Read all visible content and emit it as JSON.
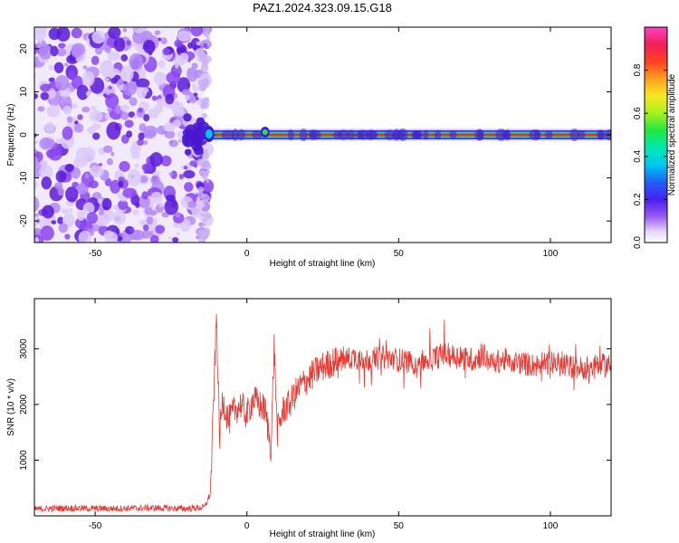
{
  "title": "PAZ1.2024.323.09.15.G18",
  "colors": {
    "snr_line": "#e83a34",
    "spectrogram_noise": "#7b2fe6",
    "spectrogram_band": "#e0303a"
  },
  "chart_data": [
    {
      "type": "heatmap",
      "name": "spectrogram",
      "xlabel": "Height of straight line (km)",
      "ylabel": "Frequency (Hz)",
      "xlim": [
        -70,
        120
      ],
      "ylim": [
        -25,
        25
      ],
      "xticks": [
        -50,
        0,
        50,
        100
      ],
      "yticks": [
        -20,
        -10,
        0,
        10,
        20
      ],
      "colorbar": {
        "label": "Normalized spectral amplitude",
        "range": [
          0,
          1
        ],
        "ticks": [
          "0.0",
          "0.2",
          "0.4",
          "0.6",
          "0.8"
        ],
        "tick_values": [
          0.0,
          0.2,
          0.4,
          0.6,
          0.8
        ]
      },
      "noise_region_x": [
        -70,
        -14
      ],
      "signal_region_x": [
        -14,
        120
      ],
      "signal_frequency": 0
    },
    {
      "type": "line",
      "name": "snr",
      "xlabel": "Height of straight line (km)",
      "ylabel": "SNR (10 * v/v)",
      "xlim": [
        -70,
        120
      ],
      "ylim": [
        0,
        3900
      ],
      "xticks": [
        -50,
        0,
        50,
        100
      ],
      "yticks": [
        1000,
        2000,
        3000
      ],
      "series": [
        {
          "x": [
            -70,
            -60,
            -50,
            -40,
            -30,
            -20,
            -14,
            -12,
            -10,
            -9,
            -8,
            -6,
            -4,
            -2,
            0,
            2,
            4,
            6,
            8,
            9,
            10,
            12,
            14,
            16,
            18,
            20,
            22,
            24,
            26,
            28,
            30,
            32,
            35,
            40,
            45,
            50,
            55,
            60,
            65,
            70,
            75,
            78,
            80,
            85,
            90,
            95,
            100,
            105,
            110,
            115,
            120
          ],
          "y": [
            120,
            140,
            130,
            135,
            140,
            130,
            150,
            400,
            3600,
            1400,
            2100,
            1700,
            1900,
            2000,
            1800,
            2100,
            2000,
            1900,
            1200,
            3100,
            1500,
            1900,
            2000,
            2200,
            2350,
            2450,
            2550,
            2650,
            2700,
            2750,
            2800,
            2800,
            2850,
            2800,
            2850,
            2800,
            2750,
            2800,
            2900,
            2850,
            2800,
            2900,
            2750,
            2800,
            2750,
            2700,
            2750,
            2700,
            2650,
            2700,
            2700
          ]
        }
      ]
    }
  ]
}
